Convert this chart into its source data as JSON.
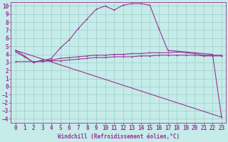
{
  "xlabel": "Windchill (Refroidissement éolien,°C)",
  "xlim": [
    -0.5,
    23.5
  ],
  "ylim": [
    -4.5,
    10.5
  ],
  "background_color": "#c5ece8",
  "line_color": "#993399",
  "grid_color": "#9ecfcb",
  "line1_x": [
    0,
    1,
    2,
    3,
    4,
    5,
    6,
    7,
    8,
    9,
    10,
    11,
    12,
    13,
    14,
    15,
    16,
    17,
    22,
    23
  ],
  "line1_y": [
    4.5,
    3.8,
    3.0,
    3.2,
    3.5,
    4.8,
    5.8,
    7.2,
    8.4,
    9.6,
    10.0,
    9.5,
    10.1,
    10.3,
    10.3,
    10.1,
    7.2,
    4.5,
    4.0,
    -3.8
  ],
  "line2_x": [
    0,
    1,
    2,
    3,
    4,
    5,
    6,
    7,
    8,
    9,
    10,
    11,
    12,
    13,
    14,
    15,
    16,
    17,
    18,
    19,
    20,
    21,
    22,
    23
  ],
  "line2_y": [
    4.3,
    3.7,
    3.0,
    3.3,
    3.3,
    3.5,
    3.6,
    3.7,
    3.8,
    3.9,
    3.9,
    4.0,
    4.0,
    4.1,
    4.1,
    4.2,
    4.2,
    4.2,
    4.3,
    4.2,
    4.1,
    3.9,
    3.9,
    3.9
  ],
  "line3_x": [
    0,
    2,
    3,
    4,
    5,
    6,
    7,
    8,
    9,
    10,
    11,
    12,
    13,
    14,
    15,
    16,
    17,
    18,
    19,
    20,
    21,
    22,
    23
  ],
  "line3_y": [
    3.1,
    3.1,
    3.1,
    3.2,
    3.2,
    3.3,
    3.4,
    3.5,
    3.6,
    3.6,
    3.7,
    3.7,
    3.7,
    3.8,
    3.8,
    3.9,
    3.9,
    3.9,
    3.9,
    3.9,
    3.8,
    3.8,
    3.8
  ],
  "line4_x": [
    0,
    23
  ],
  "line4_y": [
    4.5,
    -3.8
  ],
  "ytick_labels": [
    "10",
    "9",
    "8",
    "7",
    "6",
    "5",
    "4",
    "3",
    "2",
    "1",
    "0",
    "-1",
    "-2",
    "-3",
    "-4"
  ],
  "ytick_vals": [
    10,
    9,
    8,
    7,
    6,
    5,
    4,
    3,
    2,
    1,
    0,
    -1,
    -2,
    -3,
    -4
  ],
  "xtick_vals": [
    0,
    1,
    2,
    3,
    4,
    5,
    6,
    7,
    8,
    9,
    10,
    11,
    12,
    13,
    14,
    15,
    16,
    17,
    18,
    19,
    20,
    21,
    22,
    23
  ],
  "font_size": 5.5
}
